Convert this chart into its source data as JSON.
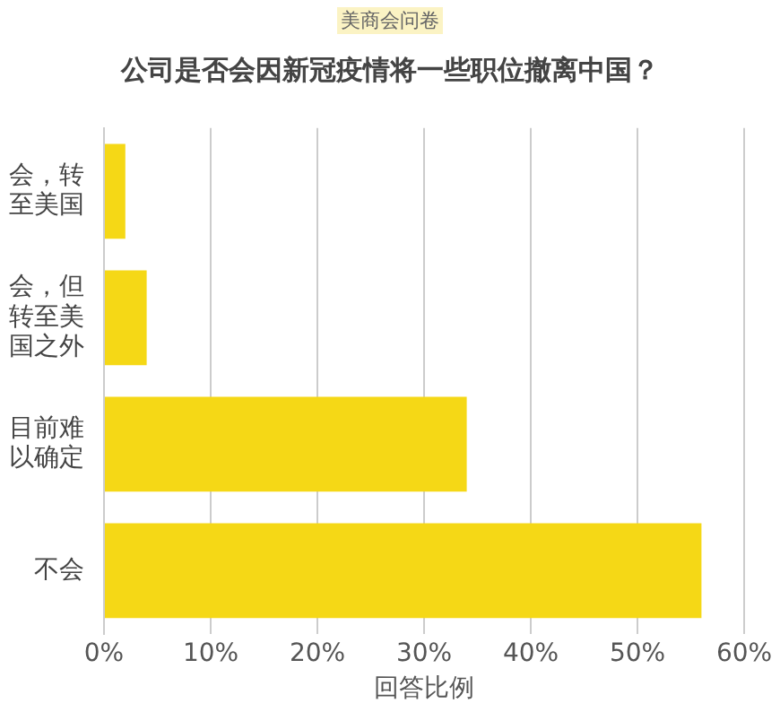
{
  "chart_data": {
    "type": "bar",
    "orientation": "horizontal",
    "subtitle": "美商会问卷",
    "title": "公司是否会因新冠疫情将一些职位撤离中国？",
    "xlabel": "回答比例",
    "categories": [
      "会，转至美国",
      "会，但转至美国之外",
      "目前难以确定",
      "不会"
    ],
    "values": [
      2,
      4,
      34,
      56
    ],
    "color": "#f5d816",
    "xlim": [
      0,
      60
    ],
    "xticks": [
      {
        "value": 0,
        "label": "0%"
      },
      {
        "value": 10,
        "label": "10%"
      },
      {
        "value": 20,
        "label": "20%"
      },
      {
        "value": 30,
        "label": "30%"
      },
      {
        "value": 40,
        "label": "40%"
      },
      {
        "value": 50,
        "label": "50%"
      },
      {
        "value": 60,
        "label": "60%"
      }
    ],
    "grid": "x"
  }
}
